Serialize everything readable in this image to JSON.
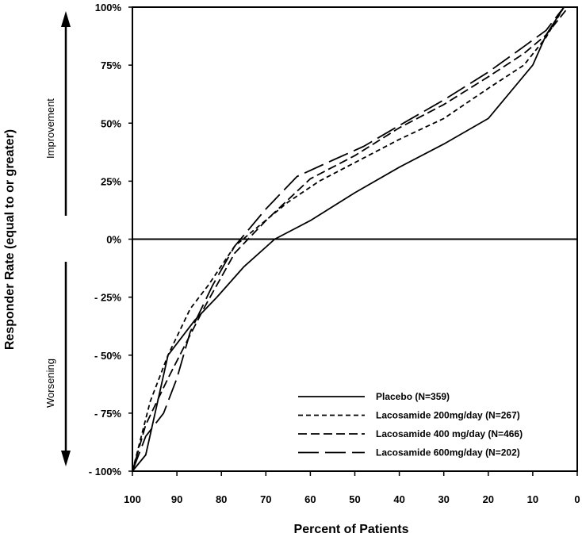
{
  "chart_data": {
    "type": "line",
    "title": "",
    "xlabel": "Percent of Patients",
    "ylabel": "Responder Rate (equal to or greater)",
    "xlim": [
      100,
      0
    ],
    "ylim": [
      -100,
      100
    ],
    "x_reversed": true,
    "x_ticks": [
      100,
      90,
      80,
      70,
      60,
      50,
      40,
      30,
      20,
      10,
      0
    ],
    "x_tick_labels": [
      "100",
      "90",
      "80",
      "70",
      "60",
      "50",
      "40",
      "30",
      "20",
      "10",
      "0"
    ],
    "y_ticks": [
      100,
      75,
      50,
      25,
      0,
      -25,
      -50,
      -75,
      -100
    ],
    "y_tick_labels": [
      "100%",
      "75%",
      "50%",
      "25%",
      "0%",
      "- 25%",
      "- 50%",
      "- 75%",
      "- 100%"
    ],
    "grid": false,
    "legend_position": "bottom-right",
    "side_labels": {
      "top": "Improvement",
      "bottom": "Worsening"
    },
    "series": [
      {
        "name": "Placebo (N=359)",
        "style": "solid",
        "points": [
          [
            100,
            -100
          ],
          [
            97,
            -93
          ],
          [
            92,
            -50
          ],
          [
            86,
            -35
          ],
          [
            81,
            -25
          ],
          [
            75,
            -12
          ],
          [
            68,
            0
          ],
          [
            60,
            8
          ],
          [
            50,
            20
          ],
          [
            40,
            31
          ],
          [
            30,
            41
          ],
          [
            20,
            52
          ],
          [
            10,
            75
          ],
          [
            7,
            88
          ],
          [
            3,
            100
          ]
        ]
      },
      {
        "name": "Lacosamide  200mg/day  (N=267)",
        "style": "short-dash",
        "points": [
          [
            100,
            -100
          ],
          [
            98,
            -85
          ],
          [
            96,
            -70
          ],
          [
            92,
            -50
          ],
          [
            87,
            -30
          ],
          [
            83,
            -20
          ],
          [
            77,
            -3
          ],
          [
            72,
            5
          ],
          [
            65,
            16
          ],
          [
            58,
            25
          ],
          [
            50,
            33
          ],
          [
            40,
            43
          ],
          [
            30,
            52
          ],
          [
            20,
            65
          ],
          [
            12,
            75
          ],
          [
            7,
            87
          ],
          [
            3,
            100
          ]
        ]
      },
      {
        "name": "Lacosamide  400 mg/day  (N=466)",
        "style": "medium-dash",
        "points": [
          [
            100,
            -100
          ],
          [
            97,
            -80
          ],
          [
            92,
            -60
          ],
          [
            88,
            -45
          ],
          [
            84,
            -30
          ],
          [
            77,
            -6
          ],
          [
            70,
            8
          ],
          [
            60,
            26
          ],
          [
            50,
            36
          ],
          [
            40,
            48
          ],
          [
            30,
            58
          ],
          [
            20,
            70
          ],
          [
            12,
            80
          ],
          [
            7,
            88
          ],
          [
            2,
            100
          ]
        ]
      },
      {
        "name": "Lacosamide  600mg/day  (N=202)",
        "style": "long-dash",
        "points": [
          [
            100,
            -100
          ],
          [
            97,
            -85
          ],
          [
            93,
            -75
          ],
          [
            90,
            -60
          ],
          [
            87,
            -40
          ],
          [
            82,
            -20
          ],
          [
            77,
            -3
          ],
          [
            70,
            13
          ],
          [
            63,
            27
          ],
          [
            55,
            34
          ],
          [
            48,
            40
          ],
          [
            40,
            49
          ],
          [
            30,
            60
          ],
          [
            20,
            72
          ],
          [
            12,
            83
          ],
          [
            7,
            90
          ],
          [
            3,
            100
          ]
        ]
      }
    ]
  }
}
